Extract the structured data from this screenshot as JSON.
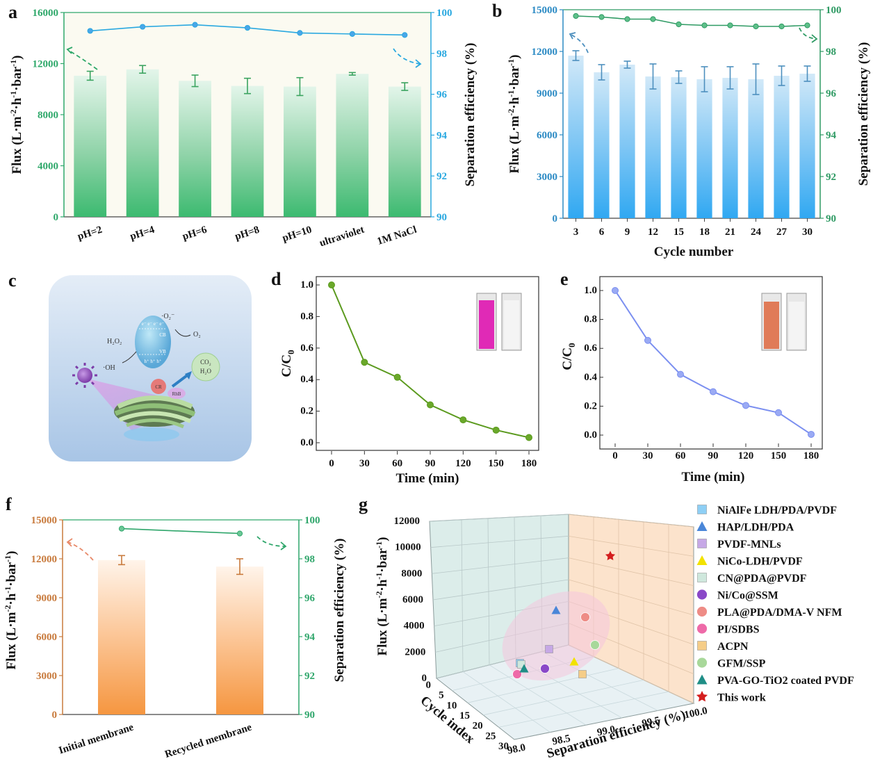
{
  "colors": {
    "a_flux_axis": "#2ea86a",
    "a_eff": "#29a8e0",
    "a_eff_marker": "#4aa6e8",
    "a_err": "#3aa35f",
    "b_flux_axis": "#2b8ac4",
    "b_bar": "#3eaaf0",
    "b_eff": "#2e9a63",
    "b_err": "#4d8fbe",
    "d_line": "#5b9a1e",
    "d_marker": "#6aa82a",
    "e_line": "#7b8ff0",
    "e_marker": "#9aaaf4",
    "f_flux_axis": "#c87a3c",
    "f_bar": "#f59a4c",
    "f_eff": "#2fa66b",
    "c_bg": "#cfe0f1",
    "c_bg_dark": "#a9c6e6"
  },
  "panels": {
    "a": "a",
    "b": "b",
    "c": "c",
    "d": "d",
    "e": "e",
    "f": "f",
    "g": "g"
  },
  "units": {
    "flux_superscripts": [
      "-2",
      "-1",
      "-1"
    ],
    "c0_sub": "0"
  },
  "c_labels": {
    "ecb": "e⁻ e⁻ e⁻ e⁻",
    "cb": "CB",
    "vb": "VB",
    "hvb": "h⁺ h⁺ h⁺",
    "o2m": "·O₂⁻",
    "o2": "O₂",
    "h2o2": "H₂O₂",
    "oh": "·OH",
    "co2": "CO₂",
    "h2o": "H₂O",
    "cr": "CR",
    "rhb": "RhB"
  },
  "chart_data": [
    {
      "id": "a",
      "type": "bar",
      "categories": [
        "pH=2",
        "pH=4",
        "pH=6",
        "pH=8",
        "pH=10",
        "ultraviolet",
        "1M NaCl"
      ],
      "series": [
        {
          "name": "Flux",
          "axis": "left",
          "values": [
            11050,
            11550,
            10650,
            10250,
            10200,
            11200,
            10200
          ],
          "errors": [
            350,
            300,
            450,
            600,
            700,
            100,
            300
          ]
        },
        {
          "name": "Separation efficiency",
          "axis": "right",
          "type": "line",
          "values": [
            99.1,
            99.3,
            99.4,
            99.25,
            99.0,
            98.95,
            98.9
          ],
          "errors": [
            0.05,
            0.05,
            0.08,
            0.1,
            0.1,
            0.05,
            0.1
          ]
        }
      ],
      "ylabel": "Flux (L·m-2·h-1·bar-1)",
      "ylabel_right": "Separation efficiency (%)",
      "ylim": [
        0,
        16000
      ],
      "yticks": [
        "0",
        "4000",
        "8000",
        "12000",
        "16000"
      ],
      "ylim_right": [
        90,
        100
      ],
      "yticks_right": [
        "90",
        "92",
        "94",
        "96",
        "98",
        "100"
      ]
    },
    {
      "id": "b",
      "type": "bar",
      "categories": [
        "3",
        "6",
        "9",
        "12",
        "15",
        "18",
        "21",
        "24",
        "27",
        "30"
      ],
      "series": [
        {
          "name": "Flux",
          "axis": "left",
          "values": [
            11700,
            10500,
            11050,
            10200,
            10150,
            10000,
            10100,
            10000,
            10250,
            10400
          ],
          "errors": [
            350,
            550,
            250,
            900,
            450,
            900,
            800,
            1100,
            700,
            550
          ]
        },
        {
          "name": "Separation efficiency",
          "axis": "right",
          "type": "line",
          "values": [
            99.7,
            99.65,
            99.55,
            99.55,
            99.3,
            99.25,
            99.25,
            99.2,
            99.2,
            99.25
          ]
        }
      ],
      "xlabel": "Cycle number",
      "ylabel": "Flux (L·m-2·h-1·bar-1)",
      "ylabel_right": "Separation efficiency (%)",
      "ylim": [
        0,
        15000
      ],
      "yticks": [
        "0",
        "3000",
        "6000",
        "9000",
        "12000",
        "15000"
      ],
      "ylim_right": [
        90,
        100
      ],
      "yticks_right": [
        "90",
        "92",
        "94",
        "96",
        "98",
        "100"
      ]
    },
    {
      "id": "d",
      "type": "line",
      "x": [
        0,
        30,
        60,
        90,
        120,
        150,
        180
      ],
      "y": [
        1.0,
        0.51,
        0.415,
        0.24,
        0.145,
        0.08,
        0.033
      ],
      "xlabel": "Time (min)",
      "ylabel": "C/C0",
      "xticks": [
        "0",
        "30",
        "60",
        "90",
        "120",
        "150",
        "180"
      ],
      "yticks": [
        "0.0",
        "0.2",
        "0.4",
        "0.6",
        "0.8",
        "1.0"
      ]
    },
    {
      "id": "e",
      "type": "line",
      "x": [
        0,
        30,
        60,
        90,
        120,
        150,
        180
      ],
      "y": [
        1.0,
        0.655,
        0.42,
        0.3,
        0.205,
        0.155,
        0.005
      ],
      "xlabel": "Time (min)",
      "ylabel": "C/C0",
      "xticks": [
        "0",
        "30",
        "60",
        "90",
        "120",
        "150",
        "180"
      ],
      "yticks": [
        "0.0",
        "0.2",
        "0.4",
        "0.6",
        "0.8",
        "1.0"
      ]
    },
    {
      "id": "f",
      "type": "bar",
      "categories": [
        "Initial membrane",
        "Recycled membrane"
      ],
      "series": [
        {
          "name": "Flux",
          "axis": "left",
          "values": [
            11900,
            11400
          ],
          "errors": [
            350,
            600
          ]
        },
        {
          "name": "Separation efficiency",
          "axis": "right",
          "type": "line",
          "values": [
            99.55,
            99.3
          ]
        }
      ],
      "ylabel": "Flux (L·m-2·h-1·bar-1)",
      "ylabel_right": "Separation efficiency (%)",
      "ylim": [
        0,
        15000
      ],
      "yticks": [
        "0",
        "3000",
        "6000",
        "9000",
        "12000",
        "15000"
      ],
      "ylim_right": [
        90,
        100
      ],
      "yticks_right": [
        "90",
        "92",
        "94",
        "96",
        "98",
        "100"
      ]
    },
    {
      "id": "g",
      "type": "scatter",
      "xlabel": "Separation efficiency (%)",
      "ylabel": "Flux (L·m-2·h-1·bar-1)",
      "zlabel": "Cycle index",
      "xticks": [
        "98.0",
        "98.5",
        "99.0",
        "99.5",
        "100.0"
      ],
      "yticks": [
        "0",
        "2000",
        "4000",
        "6000",
        "8000",
        "10000",
        "12000"
      ],
      "zticks": [
        "0",
        "5",
        "10",
        "15",
        "20",
        "25",
        "30"
      ],
      "legend": [
        {
          "label": "NiAlFe LDH/PDA/PVDF",
          "color": "#8ecff5",
          "marker": "cube"
        },
        {
          "label": "HAP/LDH/PDA",
          "color": "#4a86d8",
          "marker": "cone"
        },
        {
          "label": "PVDF-MNLs",
          "color": "#c6a8e6",
          "marker": "cube"
        },
        {
          "label": "NiCo-LDH/PVDF",
          "color": "#f2e200",
          "marker": "cone"
        },
        {
          "label": "CN@PDA@PVDF",
          "color": "#cfe8dd",
          "marker": "cube"
        },
        {
          "label": "Ni/Co@SSM",
          "color": "#8a48c8",
          "marker": "sphere"
        },
        {
          "label": "PLA@PDA/DMA-V NFM",
          "color": "#ee8c86",
          "marker": "sphere"
        },
        {
          "label": "PI/SDBS",
          "color": "#ee6aa8",
          "marker": "sphere"
        },
        {
          "label": "ACPN",
          "color": "#f5cd88",
          "marker": "cube"
        },
        {
          "label": "GFM/SSP",
          "color": "#a8d89a",
          "marker": "sphere"
        },
        {
          "label": "PVA-GO-TiO2 coated PVDF",
          "color": "#1f8e86",
          "marker": "cone"
        },
        {
          "label": "This work",
          "color": "#d41e1e",
          "marker": "star"
        }
      ]
    }
  ]
}
